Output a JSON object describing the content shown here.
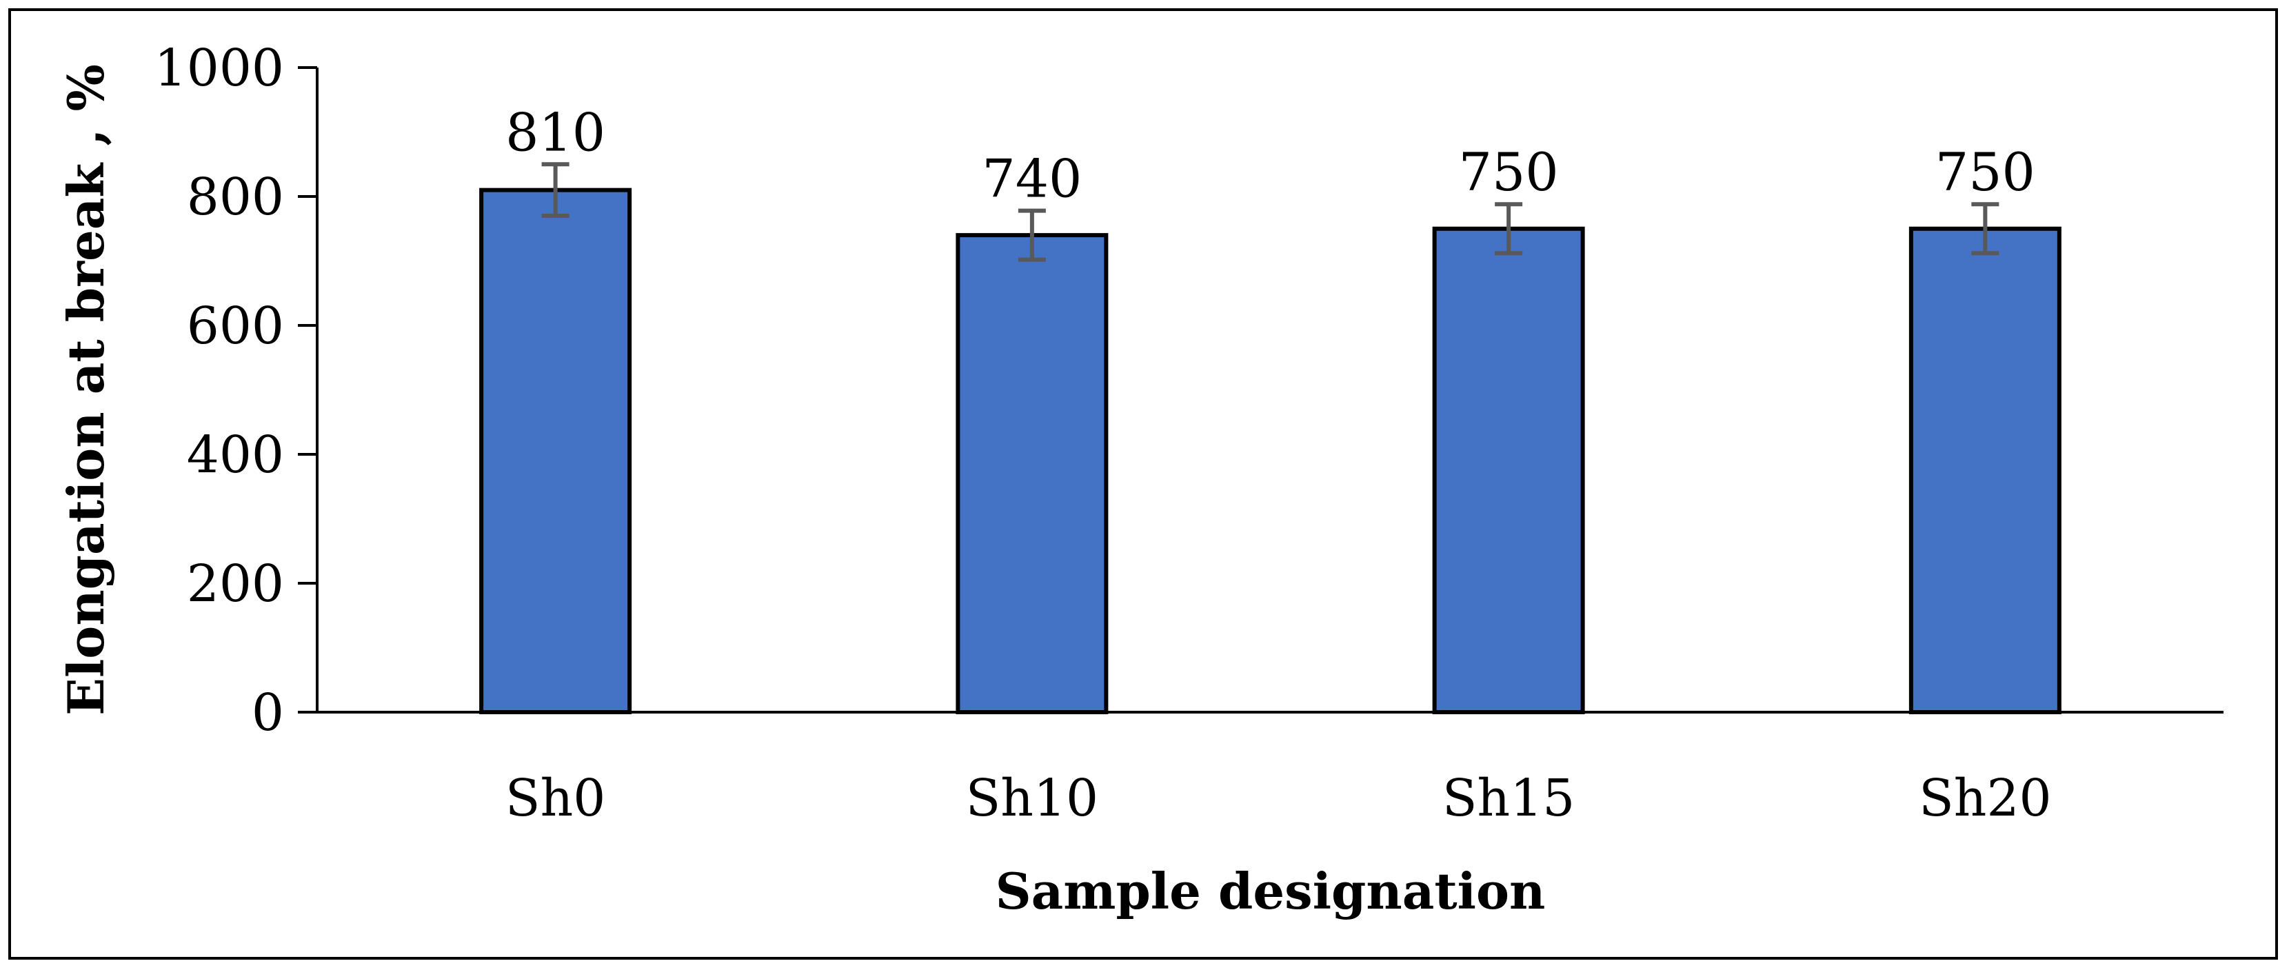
{
  "chart_data": {
    "type": "bar",
    "title": "",
    "xlabel": "Sample designation",
    "ylabel": "Elongation at break , %",
    "categories": [
      "Sh0",
      "Sh10",
      "Sh15",
      "Sh20"
    ],
    "values": [
      810,
      740,
      750,
      750
    ],
    "data_labels": [
      "810",
      "740",
      "750",
      "750"
    ],
    "error": [
      40,
      38,
      38,
      38
    ],
    "ylim": [
      0,
      1000
    ],
    "yticks": [
      0,
      200,
      400,
      600,
      800,
      1000
    ],
    "grid": false,
    "legend": "none",
    "colors": {
      "bar": "#4472C4",
      "bar_edge": "#000000",
      "error_bar": "#595959",
      "axis": "#000000"
    }
  }
}
